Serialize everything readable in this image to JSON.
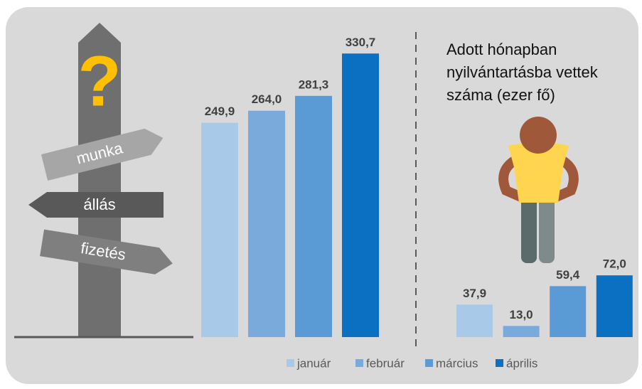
{
  "legend": {
    "labels": [
      "január",
      "február",
      "március",
      "április"
    ],
    "colors": [
      "#a9c9e9",
      "#7aaadc",
      "#5b9bd5",
      "#0b6fc2"
    ]
  },
  "signs": [
    "munka",
    "állás",
    "fizetés"
  ],
  "chart_data": [
    {
      "type": "bar",
      "values": [
        249.9,
        264.0,
        281.3,
        330.7
      ],
      "value_labels": [
        "249,9",
        "264,0",
        "281,3",
        "330,7"
      ],
      "ylim": [
        0,
        350
      ]
    },
    {
      "type": "bar",
      "title": "Adott hónapban nyilvántartásba vettek száma (ezer fő)",
      "values": [
        37.9,
        13.0,
        59.4,
        72.0
      ],
      "value_labels": [
        "37,9",
        "13,0",
        "59,4",
        "72,0"
      ],
      "ylim": [
        0,
        350
      ]
    }
  ]
}
